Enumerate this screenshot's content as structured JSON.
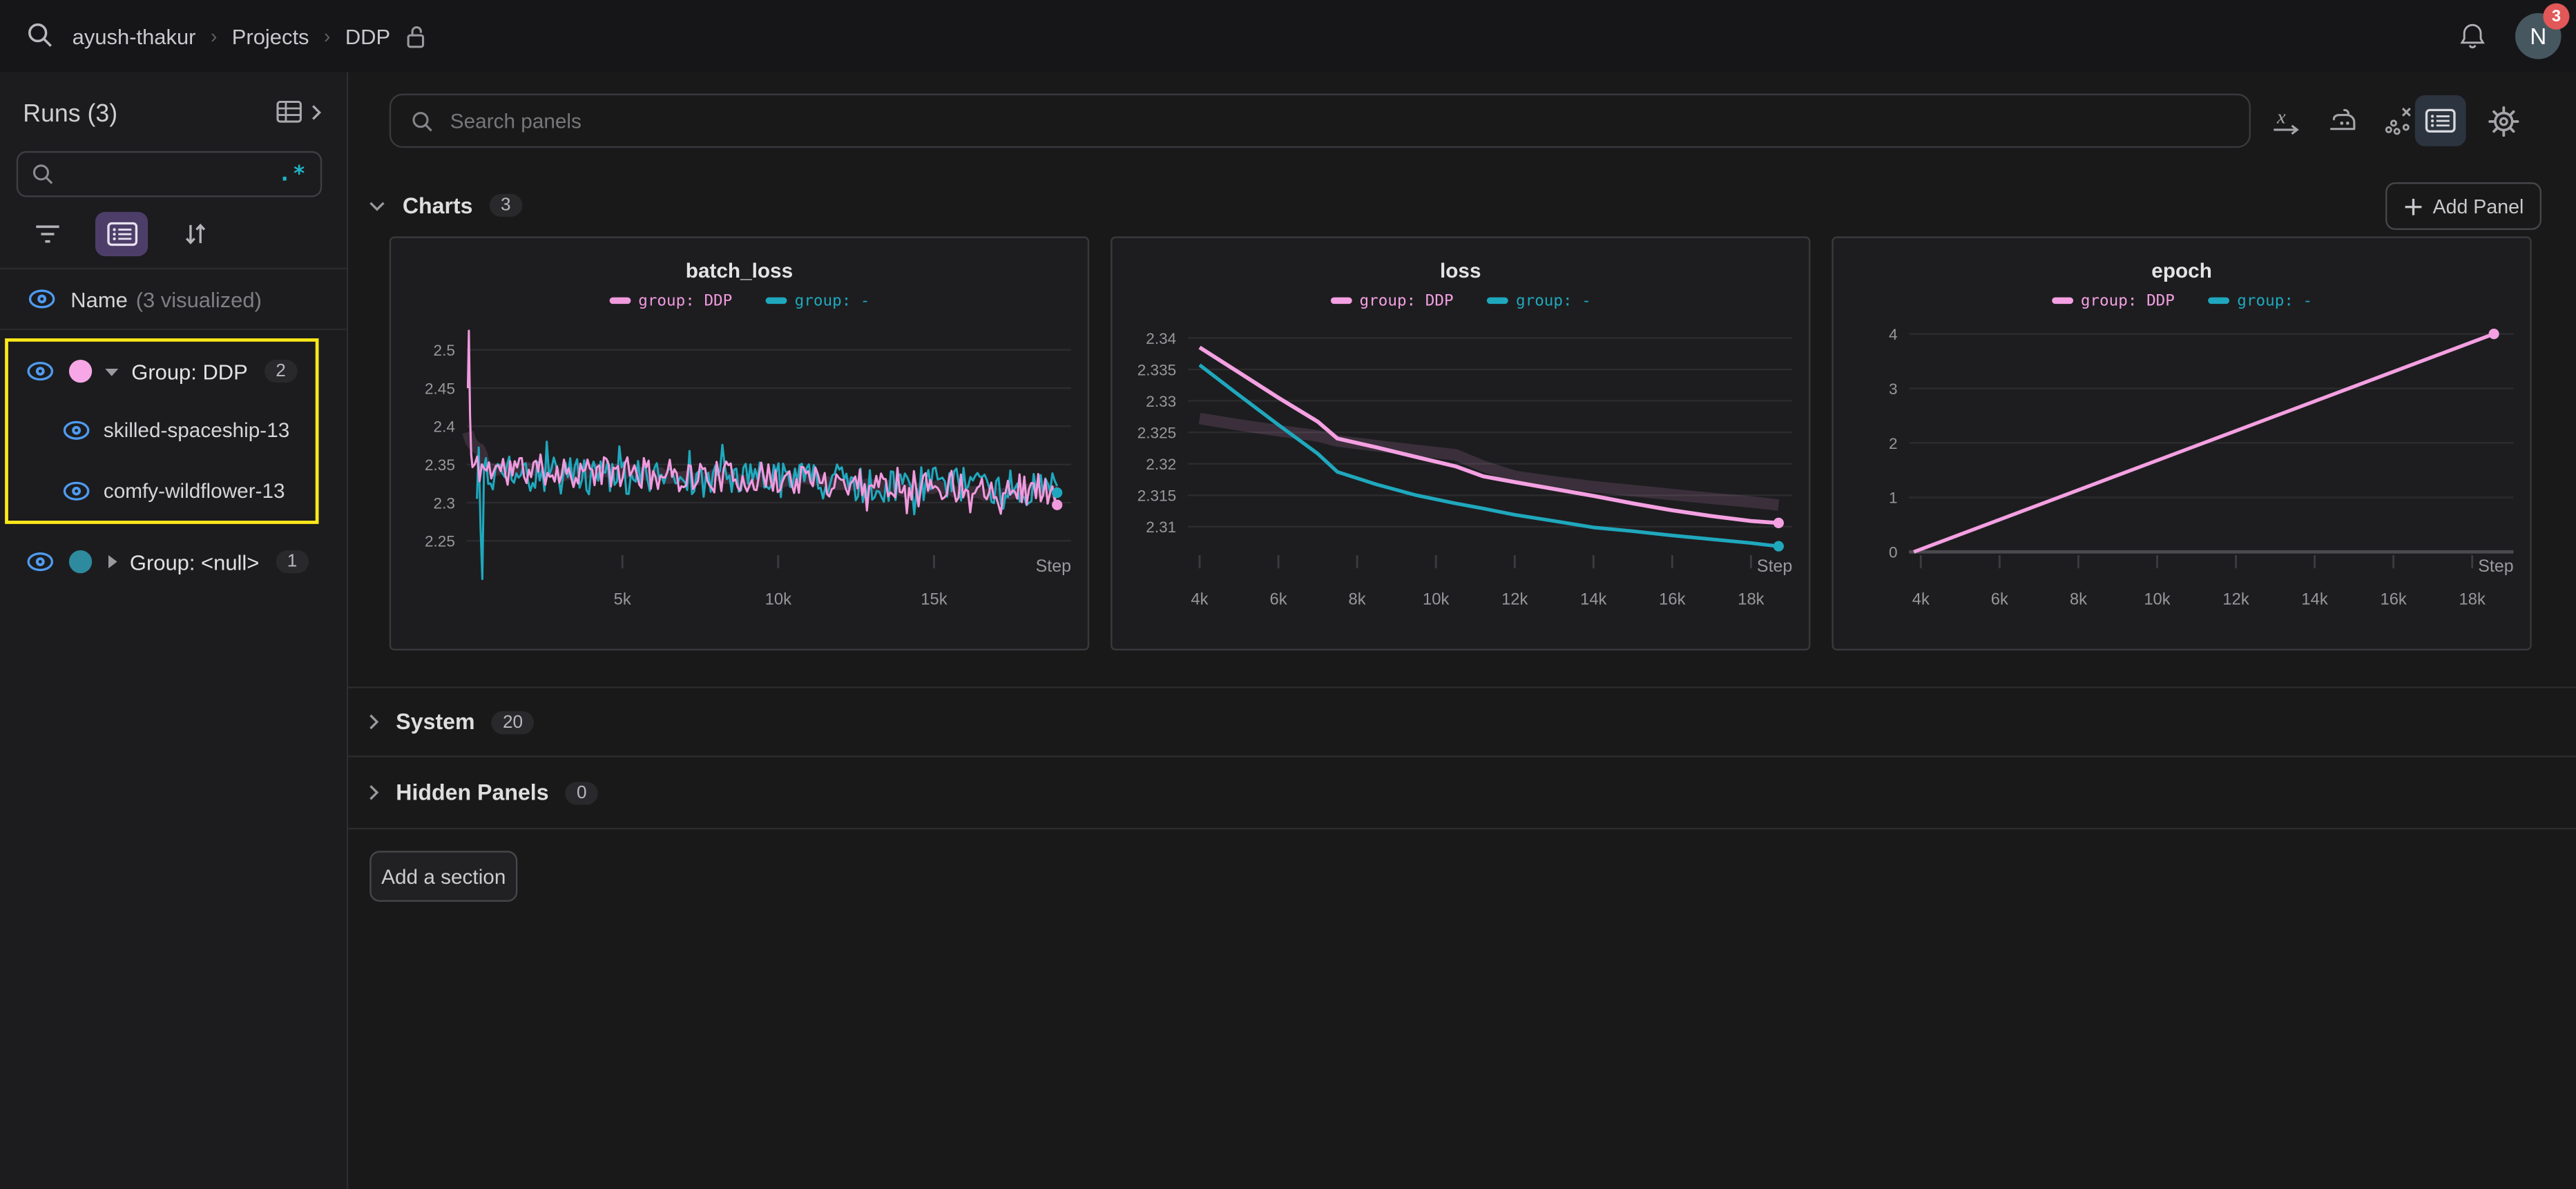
{
  "topbar": {
    "breadcrumb": [
      "ayush-thakur",
      "Projects",
      "DDP"
    ],
    "avatar_letter": "N",
    "notification_count": "3"
  },
  "sidebar": {
    "title": "Runs (3)",
    "search_value": "",
    "regex_label": ".*",
    "name_header": "Name",
    "visualized_note": "(3 visualized)",
    "groups": [
      {
        "label": "Group: DDP",
        "count": "2",
        "color": "#f7a6e6",
        "expanded": true,
        "highlighted": true,
        "runs": [
          "skilled-spaceship-13",
          "comfy-wildflower-13"
        ]
      },
      {
        "label": "Group: <null>",
        "count": "1",
        "color": "#2e8a9e",
        "expanded": false,
        "runs": []
      }
    ]
  },
  "panelbar": {
    "search_placeholder": "Search panels"
  },
  "sections": {
    "charts": {
      "label": "Charts",
      "count": "3"
    },
    "system": {
      "label": "System",
      "count": "20"
    },
    "hidden": {
      "label": "Hidden Panels",
      "count": "0"
    },
    "add_panel": "Add Panel",
    "add_section": "Add a section"
  },
  "colors": {
    "accent_pink": "#f09ade",
    "accent_teal": "#1fa8bd",
    "eye_blue": "#4f9bf0",
    "highlight_yellow": "#ffe81a",
    "active_purple": "#4d3e69",
    "badge_red": "#e25757"
  },
  "chart_data": [
    {
      "type": "line",
      "title": "batch_loss",
      "xlabel": "Step",
      "xlim": [
        0,
        19400
      ],
      "ylim": [
        2.2355,
        2.528
      ],
      "grid": true,
      "legend_position": "top",
      "xticks": [
        {
          "v": 5000,
          "label": "5k"
        },
        {
          "v": 10000,
          "label": "10k"
        },
        {
          "v": 15000,
          "label": "15k"
        }
      ],
      "yticks": [
        {
          "v": 2.25,
          "label": "2.25"
        },
        {
          "v": 2.3,
          "label": "2.3"
        },
        {
          "v": 2.35,
          "label": "2.35"
        },
        {
          "v": 2.4,
          "label": "2.4"
        },
        {
          "v": 2.45,
          "label": "2.45"
        },
        {
          "v": 2.5,
          "label": "2.5"
        }
      ],
      "series": [
        {
          "name": "group: DDP",
          "color": "#f09ade",
          "width": 1.3,
          "kind": "noisy",
          "seed": 11,
          "n": 250,
          "gen_from": 190,
          "x_end": 18950,
          "base_start": 2.346,
          "base_end": 2.317,
          "amplitude": 0.021,
          "spike_chance": 0.06,
          "spike_scale": 2.0,
          "clamp": [
            2.262,
            2.442
          ],
          "lead": [
            [
              40,
              2.45
            ],
            [
              75,
              2.525
            ],
            [
              110,
              2.415
            ],
            [
              150,
              2.363
            ]
          ],
          "endpoint": [
            18950,
            2.297
          ],
          "band": true
        },
        {
          "name": "group: -",
          "color": "#1fa8bd",
          "width": 1.3,
          "kind": "noisy",
          "seed": 4,
          "n": 245,
          "gen_from": 620,
          "x_end": 18950,
          "base_start": 2.338,
          "base_end": 2.319,
          "amplitude": 0.024,
          "spike_chance": 0.07,
          "spike_scale": 2.0,
          "clamp": [
            2.246,
            2.425
          ],
          "lead": [
            [
              330,
              2.305
            ],
            [
              390,
              2.372
            ],
            [
              450,
              2.268
            ],
            [
              505,
              2.2
            ],
            [
              560,
              2.345
            ]
          ],
          "endpoint": [
            18950,
            2.313
          ],
          "band": false
        }
      ]
    },
    {
      "type": "line",
      "title": "loss",
      "xlabel": "Step",
      "xlim": [
        3700,
        19050
      ],
      "ylim": [
        2.306,
        2.3415
      ],
      "grid": true,
      "legend_position": "top",
      "xticks": [
        {
          "v": 4000,
          "label": "4k"
        },
        {
          "v": 6000,
          "label": "6k"
        },
        {
          "v": 8000,
          "label": "8k"
        },
        {
          "v": 10000,
          "label": "10k"
        },
        {
          "v": 12000,
          "label": "12k"
        },
        {
          "v": 14000,
          "label": "14k"
        },
        {
          "v": 16000,
          "label": "16k"
        },
        {
          "v": 18000,
          "label": "18k"
        }
      ],
      "yticks": [
        {
          "v": 2.31,
          "label": "2.31"
        },
        {
          "v": 2.315,
          "label": "2.315"
        },
        {
          "v": 2.32,
          "label": "2.32"
        },
        {
          "v": 2.325,
          "label": "2.325"
        },
        {
          "v": 2.33,
          "label": "2.33"
        },
        {
          "v": 2.335,
          "label": "2.335"
        },
        {
          "v": 2.34,
          "label": "2.34"
        }
      ],
      "series": [
        {
          "name": "group: DDP",
          "color": "#f4a0e2",
          "width": 2.4,
          "kind": "points",
          "band": true,
          "points": [
            [
              4000,
              2.3385
            ],
            [
              5000,
              2.3345
            ],
            [
              6000,
              2.3305
            ],
            [
              7000,
              2.3267
            ],
            [
              7500,
              2.324
            ],
            [
              8500,
              2.3226
            ],
            [
              9500,
              2.3211
            ],
            [
              10500,
              2.3196
            ],
            [
              11200,
              2.318
            ],
            [
              12000,
              2.3171
            ],
            [
              13000,
              2.316
            ],
            [
              14000,
              2.3149
            ],
            [
              15000,
              2.3137
            ],
            [
              16000,
              2.3126
            ],
            [
              17000,
              2.3117
            ],
            [
              18000,
              2.3109
            ],
            [
              18700,
              2.3106
            ]
          ],
          "endpoint": [
            18700,
            2.3106
          ]
        },
        {
          "name": "group: -",
          "color": "#1fa8bd",
          "width": 2.2,
          "kind": "points",
          "band": false,
          "points": [
            [
              4000,
              2.3357
            ],
            [
              5000,
              2.3309
            ],
            [
              6000,
              2.3262
            ],
            [
              7000,
              2.3216
            ],
            [
              7500,
              2.3187
            ],
            [
              8500,
              2.3167
            ],
            [
              9500,
              2.315
            ],
            [
              10500,
              2.3137
            ],
            [
              11200,
              2.3129
            ],
            [
              12000,
              2.3119
            ],
            [
              13000,
              2.3109
            ],
            [
              14000,
              2.3099
            ],
            [
              15000,
              2.3093
            ],
            [
              16000,
              2.3086
            ],
            [
              17000,
              2.308
            ],
            [
              18000,
              2.3074
            ],
            [
              18700,
              2.3069
            ]
          ],
          "endpoint": [
            18700,
            2.3069
          ]
        }
      ]
    },
    {
      "type": "line",
      "title": "epoch",
      "xlabel": "Step",
      "xlim": [
        3700,
        19050
      ],
      "ylim": [
        0,
        4.1
      ],
      "grid": true,
      "axis_at": 0,
      "legend_position": "top",
      "xticks": [
        {
          "v": 4000,
          "label": "4k"
        },
        {
          "v": 6000,
          "label": "6k"
        },
        {
          "v": 8000,
          "label": "8k"
        },
        {
          "v": 10000,
          "label": "10k"
        },
        {
          "v": 12000,
          "label": "12k"
        },
        {
          "v": 14000,
          "label": "14k"
        },
        {
          "v": 16000,
          "label": "16k"
        },
        {
          "v": 18000,
          "label": "18k"
        }
      ],
      "yticks": [
        {
          "v": 0,
          "label": "0"
        },
        {
          "v": 1,
          "label": "1"
        },
        {
          "v": 2,
          "label": "2"
        },
        {
          "v": 3,
          "label": "3"
        },
        {
          "v": 4,
          "label": "4"
        }
      ],
      "series": [
        {
          "name": "group: DDP",
          "color": "#f4a0e2",
          "width": 2.2,
          "kind": "points",
          "band": false,
          "points": [
            [
              3820,
              0
            ],
            [
              18550,
              4
            ]
          ],
          "endpoint": [
            18550,
            4
          ]
        },
        {
          "name": "group: -",
          "color": "#1fa8bd",
          "width": 2.0,
          "kind": "points",
          "band": false,
          "points": []
        }
      ]
    }
  ]
}
